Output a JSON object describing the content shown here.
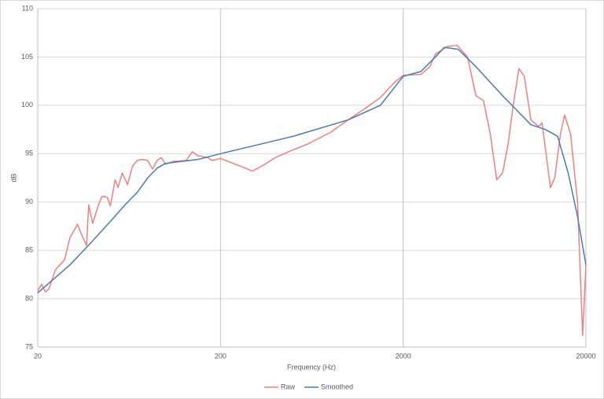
{
  "chart_data": {
    "type": "line",
    "xlabel": "Frequency (Hz)",
    "ylabel": "dB",
    "xscale": "log",
    "xlim": [
      20,
      20000
    ],
    "xticks": [
      20,
      200,
      2000,
      20000
    ],
    "ylim": [
      75,
      110
    ],
    "yticks": [
      75,
      80,
      85,
      90,
      95,
      100,
      105,
      110
    ],
    "grid": true,
    "legend": "bottom",
    "series": [
      {
        "name": "Raw",
        "color": "#f08080",
        "x": [
          20,
          21,
          22,
          23,
          25,
          28,
          30,
          33,
          35,
          37,
          38,
          40,
          43,
          45,
          48,
          50,
          53,
          55,
          58,
          62,
          66,
          70,
          75,
          80,
          85,
          90,
          95,
          100,
          110,
          130,
          140,
          150,
          170,
          180,
          200,
          250,
          300,
          350,
          400,
          500,
          600,
          800,
          1000,
          1200,
          1500,
          1800,
          2000,
          2500,
          2800,
          3000,
          3500,
          3950,
          4500,
          5000,
          5500,
          6000,
          6500,
          7000,
          7500,
          8000,
          8600,
          9200,
          10000,
          11000,
          11500,
          12800,
          13500,
          14500,
          15300,
          16500,
          18000,
          19200,
          20000
        ],
        "values": [
          80.8,
          81.5,
          80.7,
          81,
          83,
          84,
          86.3,
          87.7,
          86.5,
          85.5,
          89.7,
          87.8,
          89.7,
          90.6,
          90.5,
          89.6,
          92.3,
          91.5,
          93,
          91.8,
          93.7,
          94.3,
          94.4,
          94.3,
          93.4,
          94.3,
          94.6,
          93.9,
          94.2,
          94.3,
          95.2,
          94.8,
          94.6,
          94.3,
          94.5,
          93.8,
          93.2,
          93.9,
          94.6,
          95.4,
          96,
          97.2,
          98.5,
          99.5,
          100.8,
          102.4,
          103.1,
          103.2,
          104,
          105.3,
          106.1,
          106.2,
          105,
          101,
          100.5,
          97,
          92.3,
          93,
          96,
          100,
          103.8,
          103,
          98.5,
          97.8,
          98.2,
          91.5,
          92.5,
          97,
          99,
          97,
          90,
          76.2,
          83.5
        ]
      },
      {
        "name": "Smoothed",
        "color": "#4a7ab8",
        "x": [
          20,
          30,
          40,
          50,
          60,
          70,
          80,
          90,
          100,
          150,
          200,
          500,
          1000,
          1500,
          2000,
          2500,
          3000,
          3360,
          4000,
          5000,
          7000,
          10000,
          12000,
          14000,
          16000,
          18000,
          20000
        ],
        "values": [
          80.6,
          83.5,
          86,
          88,
          89.7,
          91,
          92.5,
          93.5,
          94,
          94.4,
          95,
          96.8,
          98.5,
          100,
          103,
          103.5,
          105,
          106,
          105.8,
          104,
          101,
          98,
          97.5,
          96.8,
          93,
          88.5,
          83.5
        ]
      }
    ]
  }
}
